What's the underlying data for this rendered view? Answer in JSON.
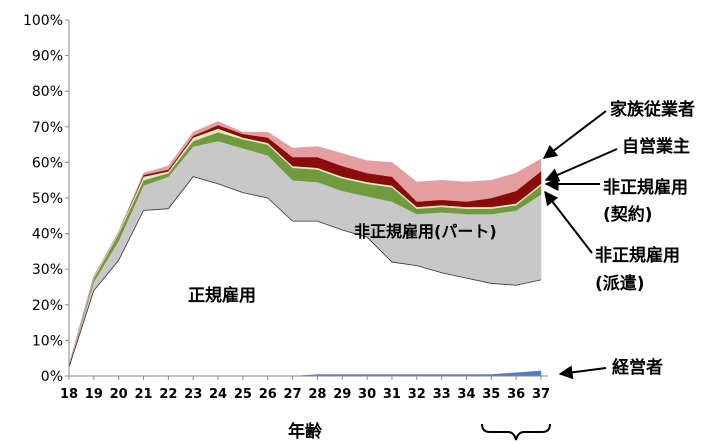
{
  "chart_data": {
    "type": "area",
    "stacked": true,
    "xlabel": "年齢",
    "ylabel": "",
    "x": [
      18,
      19,
      20,
      21,
      22,
      23,
      24,
      25,
      26,
      27,
      28,
      29,
      30,
      31,
      32,
      33,
      34,
      35,
      36,
      37
    ],
    "x_tick_labels": [
      "18",
      "19",
      "20",
      "21",
      "22",
      "23",
      "24",
      "25",
      "26",
      "27",
      "28",
      "29",
      "30",
      "31",
      "32",
      "33",
      "34",
      "35",
      "36",
      "37"
    ],
    "ylim": [
      0,
      100
    ],
    "y_tick_labels": [
      "0%",
      "10%",
      "20%",
      "30%",
      "40%",
      "50%",
      "60%",
      "70%",
      "80%",
      "90%",
      "100%"
    ],
    "grid": false,
    "legend": "none",
    "series": [
      {
        "key": "executive",
        "color": "#4f7fc4",
        "values": [
          0,
          0,
          0,
          0,
          0,
          0,
          0,
          0,
          0,
          0,
          0.5,
          0.5,
          0.5,
          0.5,
          0.5,
          0.5,
          0.5,
          0.5,
          1,
          1.5
        ]
      },
      {
        "key": "regular",
        "color": "#ffffff",
        "values": [
          2.5,
          24,
          32.5,
          46.5,
          47,
          56,
          54,
          51.5,
          50,
          43.5,
          43,
          40.5,
          38.5,
          31.5,
          30.5,
          28.5,
          27,
          25.5,
          24.5,
          25.5
        ]
      },
      {
        "key": "part_time",
        "color": "#c8c8c8",
        "values": [
          0,
          2.5,
          5.5,
          7,
          9,
          8.5,
          12,
          12.5,
          12,
          11.5,
          11,
          11,
          11.5,
          17,
          14.5,
          17,
          18,
          19.5,
          21,
          24
        ]
      },
      {
        "key": "dispatch",
        "color": "#6f9b3e",
        "values": [
          0,
          1,
          2,
          1.5,
          1,
          1.5,
          2.5,
          2.5,
          3,
          3.5,
          3.5,
          3.5,
          3.5,
          4,
          1.5,
          1.5,
          1.5,
          1.5,
          1.5,
          2.5
        ]
      },
      {
        "key": "contract",
        "color": "#e8ecc4",
        "values": [
          0.5,
          0.5,
          0.5,
          1,
          0.5,
          1,
          1,
          0.5,
          0.5,
          0.5,
          0.5,
          0.5,
          0.5,
          0.5,
          0.5,
          0.5,
          0.5,
          0.5,
          0.5,
          0.5
        ]
      },
      {
        "key": "self_employed",
        "color": "#8b0a0a",
        "values": [
          0,
          0,
          0,
          0.5,
          0.5,
          0.5,
          1,
          1,
          1.5,
          2.5,
          3,
          3,
          2.5,
          2.5,
          1.5,
          1.5,
          1.5,
          2.5,
          3.5,
          3.5
        ]
      },
      {
        "key": "family_worker",
        "color": "#e59ea0",
        "values": [
          0,
          0,
          0,
          0.5,
          1,
          1,
          1,
          0.5,
          1.5,
          2.5,
          3,
          3.5,
          3.5,
          4,
          5.5,
          5.5,
          5.5,
          5,
          5,
          3.5
        ]
      }
    ],
    "annotations": {
      "regular": "正規雇用",
      "part_time": "非正規雇用(パート)",
      "family_worker": "家族従業者",
      "self_employed": "自営業主",
      "contract_line1": "非正規雇用",
      "contract_line2": "(契約)",
      "dispatch_line1": "非正規雇用",
      "dispatch_line2": "(派遣)",
      "executive": "経営者"
    }
  }
}
